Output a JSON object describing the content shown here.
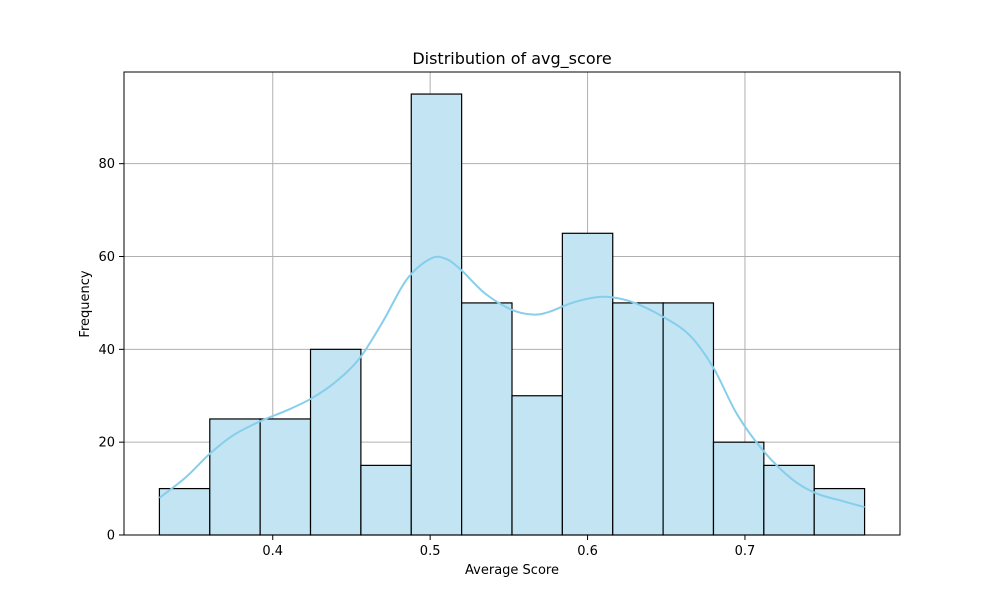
{
  "chart_data": {
    "type": "bar",
    "title": "Distribution of avg_score",
    "xlabel": "Average Score",
    "ylabel": "Frequency",
    "bins": [
      {
        "start": 0.328,
        "end": 0.36,
        "count": 10
      },
      {
        "start": 0.36,
        "end": 0.392,
        "count": 25
      },
      {
        "start": 0.392,
        "end": 0.424,
        "count": 25
      },
      {
        "start": 0.424,
        "end": 0.456,
        "count": 40
      },
      {
        "start": 0.456,
        "end": 0.488,
        "count": 15
      },
      {
        "start": 0.488,
        "end": 0.52,
        "count": 95
      },
      {
        "start": 0.52,
        "end": 0.552,
        "count": 50
      },
      {
        "start": 0.552,
        "end": 0.584,
        "count": 30
      },
      {
        "start": 0.584,
        "end": 0.616,
        "count": 65
      },
      {
        "start": 0.616,
        "end": 0.648,
        "count": 50
      },
      {
        "start": 0.648,
        "end": 0.68,
        "count": 50
      },
      {
        "start": 0.68,
        "end": 0.712,
        "count": 20
      },
      {
        "start": 0.712,
        "end": 0.744,
        "count": 15
      },
      {
        "start": 0.744,
        "end": 0.776,
        "count": 10
      }
    ],
    "kde": {
      "x": [
        0.328,
        0.345,
        0.36,
        0.375,
        0.392,
        0.41,
        0.425,
        0.44,
        0.455,
        0.47,
        0.485,
        0.5,
        0.51,
        0.52,
        0.535,
        0.552,
        0.565,
        0.575,
        0.59,
        0.605,
        0.616,
        0.63,
        0.648,
        0.665,
        0.68,
        0.695,
        0.712,
        0.73,
        0.745,
        0.76,
        0.776
      ],
      "y": [
        8,
        12.5,
        17.5,
        21.5,
        24.5,
        27,
        29.5,
        33,
        38,
        46,
        55,
        59.5,
        59.5,
        57,
        52,
        48.5,
        47.5,
        48,
        50,
        51.2,
        51.2,
        50,
        47,
        43,
        36,
        26,
        18,
        12,
        9,
        7.5,
        6
      ]
    },
    "xticks": [
      0.4,
      0.5,
      0.6,
      0.7
    ],
    "yticks": [
      0,
      20,
      40,
      60,
      80
    ],
    "xlim": [
      0.3055,
      0.7985
    ],
    "ylim": [
      0,
      99.75
    ],
    "grid": true,
    "colors": {
      "bar_fill": "#c2e4f3",
      "bar_edge": "#000000",
      "kde_line": "#87ceeb",
      "grid": "#b0b0b0"
    }
  }
}
